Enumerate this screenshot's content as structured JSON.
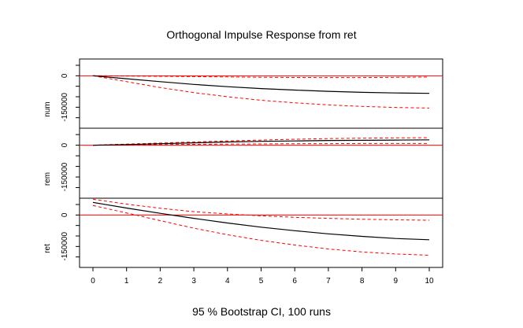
{
  "chart_data": {
    "type": "line",
    "title": "Orthogonal Impulse Response from ret",
    "footer": "95 % Bootstrap CI,  100 runs",
    "x": [
      0,
      1,
      2,
      3,
      4,
      5,
      6,
      7,
      8,
      9,
      10
    ],
    "x_tick_labels": [
      "0",
      "1",
      "2",
      "3",
      "4",
      "5",
      "6",
      "7",
      "8",
      "9",
      "10"
    ],
    "ylim": [
      -250000,
      80000
    ],
    "y_tick_labels": [
      "0",
      "-150000"
    ],
    "grid": false,
    "panels": [
      {
        "ylabel": "num",
        "irf": [
          0,
          -14000,
          -28000,
          -41000,
          -52000,
          -61000,
          -68000,
          -74000,
          -79000,
          -82000,
          -84000
        ],
        "lower": [
          0,
          -28000,
          -56000,
          -80000,
          -100000,
          -117000,
          -129000,
          -139000,
          -146000,
          -151000,
          -154000
        ],
        "upper": [
          0,
          -1000,
          -2500,
          -4000,
          -5500,
          -7000,
          -8000,
          -8500,
          -8500,
          -7500,
          -6000
        ],
        "zero": 0
      },
      {
        "ylabel": "rem",
        "irf": [
          0,
          3000,
          7000,
          11000,
          15000,
          18000,
          20000,
          22000,
          23000,
          24000,
          25000
        ],
        "lower": [
          0,
          1000,
          3000,
          4000,
          5000,
          6000,
          7000,
          7500,
          8000,
          8000,
          8000
        ],
        "upper": [
          0,
          5000,
          10000,
          15000,
          20000,
          24000,
          28000,
          31000,
          33000,
          34500,
          35000
        ],
        "zero": 0
      },
      {
        "ylabel": "ret",
        "irf": [
          60000,
          33000,
          8000,
          -16000,
          -38000,
          -58000,
          -75000,
          -90000,
          -102000,
          -112000,
          -118000
        ],
        "lower": [
          45000,
          10000,
          -27000,
          -63000,
          -94000,
          -121000,
          -143000,
          -162000,
          -176000,
          -186000,
          -192000
        ],
        "upper": [
          75000,
          52000,
          32000,
          16000,
          5000,
          -4000,
          -11000,
          -16000,
          -20000,
          -23000,
          -25000
        ],
        "zero": 0
      }
    ],
    "colors": {
      "irf": "#000000",
      "bands": "#ff0000",
      "zero_line": "#ff0000",
      "axes": "#000000"
    }
  }
}
